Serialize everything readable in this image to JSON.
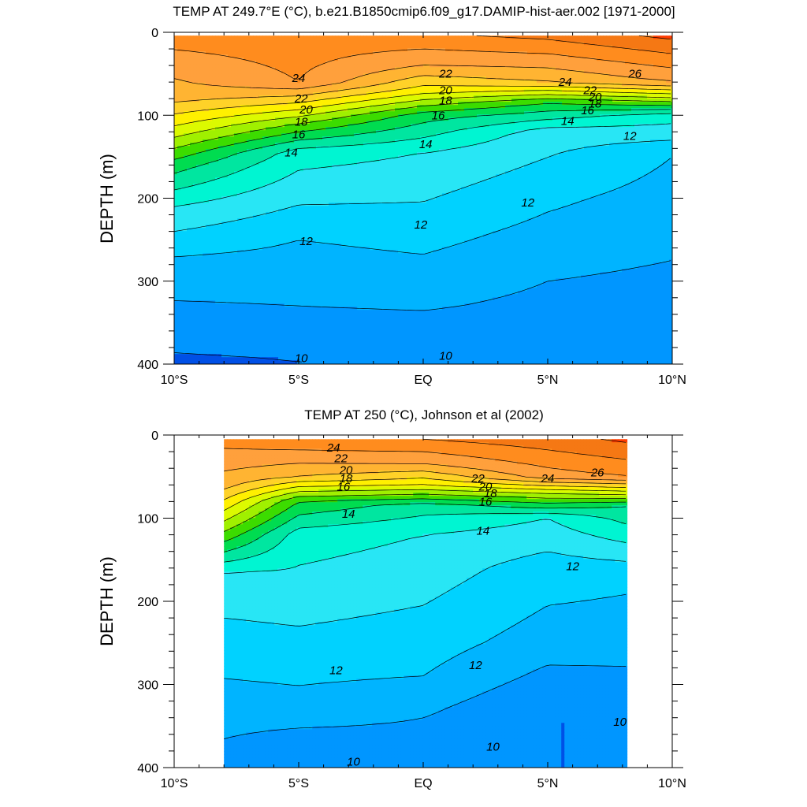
{
  "chart_data": [
    {
      "type": "heatmap",
      "title": "TEMP AT 249.7°E (°C), b.e21.B1850cmip6.f09_g17.DAMIP-hist-aer.002 [1971-2000]",
      "ylabel": "DEPTH (m)",
      "xlabel": "",
      "x_ticks": [
        -10,
        -5,
        0,
        5,
        10
      ],
      "x_tick_labels": [
        "10°S",
        "5°S",
        "EQ",
        "5°N",
        "10°N"
      ],
      "y_ticks": [
        0,
        100,
        200,
        300,
        400
      ],
      "y_tick_labels": [
        "0",
        "100",
        "200",
        "300",
        "400"
      ],
      "xlim": [
        -10,
        10
      ],
      "ylim": [
        0,
        400
      ],
      "y_inverted": true,
      "data_extent_x": [
        -10,
        10
      ],
      "contour_levels": [
        10,
        11,
        12,
        13,
        14,
        15,
        16,
        17,
        18,
        19,
        20,
        21,
        22,
        23,
        24,
        25,
        26
      ],
      "contour_labels": [
        {
          "text": "24",
          "x": -5.0,
          "depth": 55
        },
        {
          "text": "22",
          "x": -4.9,
          "depth": 80
        },
        {
          "text": "20",
          "x": -4.7,
          "depth": 93
        },
        {
          "text": "18",
          "x": -4.9,
          "depth": 108
        },
        {
          "text": "16",
          "x": -5.0,
          "depth": 123
        },
        {
          "text": "14",
          "x": -5.3,
          "depth": 145
        },
        {
          "text": "18",
          "x": 0.9,
          "depth": 82
        },
        {
          "text": "20",
          "x": 0.9,
          "depth": 70
        },
        {
          "text": "22",
          "x": 0.9,
          "depth": 50
        },
        {
          "text": "16",
          "x": 0.6,
          "depth": 100
        },
        {
          "text": "14",
          "x": 0.1,
          "depth": 135
        },
        {
          "text": "12",
          "x": 4.2,
          "depth": 205
        },
        {
          "text": "12",
          "x": -0.1,
          "depth": 232
        },
        {
          "text": "12",
          "x": -4.7,
          "depth": 252
        },
        {
          "text": "24",
          "x": 5.7,
          "depth": 60
        },
        {
          "text": "26",
          "x": 8.5,
          "depth": 50
        },
        {
          "text": "22",
          "x": 6.7,
          "depth": 70
        },
        {
          "text": "20",
          "x": 6.9,
          "depth": 78
        },
        {
          "text": "18",
          "x": 6.9,
          "depth": 86
        },
        {
          "text": "16",
          "x": 6.6,
          "depth": 94
        },
        {
          "text": "14",
          "x": 5.8,
          "depth": 107
        },
        {
          "text": "12",
          "x": 8.3,
          "depth": 125
        },
        {
          "text": "10",
          "x": -4.9,
          "depth": 393
        },
        {
          "text": "10",
          "x": 0.9,
          "depth": 390
        }
      ],
      "field_anchors": [
        {
          "x": -10,
          "depth": 0,
          "t": 24.6
        },
        {
          "x": -10,
          "depth": 80,
          "t": 22.3
        },
        {
          "x": -10,
          "depth": 120,
          "t": 19.5
        },
        {
          "x": -10,
          "depth": 160,
          "t": 16.5
        },
        {
          "x": -10,
          "depth": 210,
          "t": 14.0
        },
        {
          "x": -10,
          "depth": 270,
          "t": 12.0
        },
        {
          "x": -10,
          "depth": 345,
          "t": 10.6
        },
        {
          "x": -10,
          "depth": 400,
          "t": 9.8
        },
        {
          "x": -5,
          "depth": 0,
          "t": 24.6
        },
        {
          "x": -5,
          "depth": 60,
          "t": 24.0
        },
        {
          "x": -5,
          "depth": 110,
          "t": 18.0
        },
        {
          "x": -5,
          "depth": 145,
          "t": 14.5
        },
        {
          "x": -5,
          "depth": 250,
          "t": 12.0
        },
        {
          "x": -5,
          "depth": 330,
          "t": 11.0
        },
        {
          "x": -5,
          "depth": 395,
          "t": 10.0
        },
        {
          "x": 0,
          "depth": 0,
          "t": 25.0
        },
        {
          "x": 0,
          "depth": 40,
          "t": 23.0
        },
        {
          "x": 0,
          "depth": 70,
          "t": 20.5
        },
        {
          "x": 0,
          "depth": 100,
          "t": 16.5
        },
        {
          "x": 0,
          "depth": 145,
          "t": 14.0
        },
        {
          "x": 0,
          "depth": 240,
          "t": 12.4
        },
        {
          "x": 0,
          "depth": 330,
          "t": 11.1
        },
        {
          "x": 0,
          "depth": 390,
          "t": 10.0
        },
        {
          "x": 5,
          "depth": 0,
          "t": 25.5
        },
        {
          "x": 5,
          "depth": 60,
          "t": 22.0
        },
        {
          "x": 5,
          "depth": 85,
          "t": 17.0
        },
        {
          "x": 5,
          "depth": 120,
          "t": 13.5
        },
        {
          "x": 5,
          "depth": 200,
          "t": 12.2
        },
        {
          "x": 5,
          "depth": 300,
          "t": 11.0
        },
        {
          "x": 5,
          "depth": 400,
          "t": 10.2
        },
        {
          "x": 10,
          "depth": 0,
          "t": 26.5
        },
        {
          "x": 10,
          "depth": 60,
          "t": 23.0
        },
        {
          "x": 10,
          "depth": 100,
          "t": 14.5
        },
        {
          "x": 10,
          "depth": 150,
          "t": 12.0
        },
        {
          "x": 10,
          "depth": 275,
          "t": 11.0
        },
        {
          "x": 10,
          "depth": 385,
          "t": 10.0
        }
      ]
    },
    {
      "type": "heatmap",
      "title": "TEMP AT 250 (°C), Johnson et al (2002)",
      "ylabel": "DEPTH (m)",
      "xlabel": "",
      "x_ticks": [
        -10,
        -5,
        0,
        5,
        10
      ],
      "x_tick_labels": [
        "10°S",
        "5°S",
        "EQ",
        "5°N",
        "10°N"
      ],
      "y_ticks": [
        0,
        100,
        200,
        300,
        400
      ],
      "y_tick_labels": [
        "0",
        "100",
        "200",
        "300",
        "400"
      ],
      "xlim": [
        -10,
        10
      ],
      "ylim": [
        0,
        400
      ],
      "y_inverted": true,
      "data_extent_x": [
        -8,
        8.2
      ],
      "contour_levels": [
        10,
        11,
        12,
        13,
        14,
        15,
        16,
        17,
        18,
        19,
        20,
        21,
        22,
        23,
        24,
        25,
        26
      ],
      "contour_labels": [
        {
          "text": "24",
          "x": -3.6,
          "depth": 15
        },
        {
          "text": "22",
          "x": -3.3,
          "depth": 28
        },
        {
          "text": "20",
          "x": -3.1,
          "depth": 42
        },
        {
          "text": "18",
          "x": -3.1,
          "depth": 52
        },
        {
          "text": "16",
          "x": -3.2,
          "depth": 62
        },
        {
          "text": "14",
          "x": -3.0,
          "depth": 95
        },
        {
          "text": "22",
          "x": 2.2,
          "depth": 52
        },
        {
          "text": "20",
          "x": 2.5,
          "depth": 62
        },
        {
          "text": "18",
          "x": 2.7,
          "depth": 70
        },
        {
          "text": "16",
          "x": 2.5,
          "depth": 80
        },
        {
          "text": "14",
          "x": 2.4,
          "depth": 115
        },
        {
          "text": "24",
          "x": 5.0,
          "depth": 52
        },
        {
          "text": "26",
          "x": 7.0,
          "depth": 45
        },
        {
          "text": "12",
          "x": 6.0,
          "depth": 158
        },
        {
          "text": "12",
          "x": -3.5,
          "depth": 283
        },
        {
          "text": "12",
          "x": 2.1,
          "depth": 277
        },
        {
          "text": "10",
          "x": 7.9,
          "depth": 345
        },
        {
          "text": "10",
          "x": 2.8,
          "depth": 375
        },
        {
          "text": "10",
          "x": -2.8,
          "depth": 393
        }
      ],
      "field_anchors": [
        {
          "x": -8,
          "depth": 5,
          "t": 24.4
        },
        {
          "x": -8,
          "depth": 60,
          "t": 22.4
        },
        {
          "x": -8,
          "depth": 110,
          "t": 18.5
        },
        {
          "x": -8,
          "depth": 165,
          "t": 14.0
        },
        {
          "x": -8,
          "depth": 220,
          "t": 13.0
        },
        {
          "x": -8,
          "depth": 300,
          "t": 11.9
        },
        {
          "x": -8,
          "depth": 380,
          "t": 10.8
        },
        {
          "x": -8,
          "depth": 400,
          "t": 10.0
        },
        {
          "x": -5,
          "depth": 5,
          "t": 24.8
        },
        {
          "x": -5,
          "depth": 50,
          "t": 22.0
        },
        {
          "x": -5,
          "depth": 80,
          "t": 17.0
        },
        {
          "x": -5,
          "depth": 120,
          "t": 14.5
        },
        {
          "x": -5,
          "depth": 230,
          "t": 13.0
        },
        {
          "x": -5,
          "depth": 330,
          "t": 11.6
        },
        {
          "x": -5,
          "depth": 390,
          "t": 10.0
        },
        {
          "x": 0,
          "depth": 5,
          "t": 25.0
        },
        {
          "x": 0,
          "depth": 35,
          "t": 23.0
        },
        {
          "x": 0,
          "depth": 60,
          "t": 20.0
        },
        {
          "x": 0,
          "depth": 85,
          "t": 15.5
        },
        {
          "x": 0,
          "depth": 120,
          "t": 14.0
        },
        {
          "x": 0,
          "depth": 290,
          "t": 12.0
        },
        {
          "x": 0,
          "depth": 340,
          "t": 11.0
        },
        {
          "x": 0,
          "depth": 390,
          "t": 10.5
        },
        {
          "x": 5,
          "depth": 5,
          "t": 25.6
        },
        {
          "x": 5,
          "depth": 50,
          "t": 23.5
        },
        {
          "x": 5,
          "depth": 70,
          "t": 19.0
        },
        {
          "x": 5,
          "depth": 100,
          "t": 14.0
        },
        {
          "x": 5,
          "depth": 160,
          "t": 12.5
        },
        {
          "x": 5,
          "depth": 250,
          "t": 11.5
        },
        {
          "x": 5,
          "depth": 330,
          "t": 10.0
        },
        {
          "x": 8.2,
          "depth": 5,
          "t": 26.2
        },
        {
          "x": 8.2,
          "depth": 50,
          "t": 24.0
        },
        {
          "x": 8.2,
          "depth": 85,
          "t": 16.0
        },
        {
          "x": 8.2,
          "depth": 170,
          "t": 12.2
        },
        {
          "x": 8.2,
          "depth": 245,
          "t": 11.5
        },
        {
          "x": 8.2,
          "depth": 345,
          "t": 10.0
        }
      ]
    }
  ],
  "colors": {
    "palette": [
      "#0050E6",
      "#0096FF",
      "#00B4FF",
      "#00D2FF",
      "#28E6F5",
      "#00F5D2",
      "#00E6A0",
      "#00DC50",
      "#3CDC00",
      "#A0F000",
      "#DCFA00",
      "#FFF000",
      "#FFD228",
      "#FFB432",
      "#FFA03C",
      "#FF8C1E",
      "#F57814",
      "#FF3C00"
    ],
    "contour_line": "#000000"
  }
}
